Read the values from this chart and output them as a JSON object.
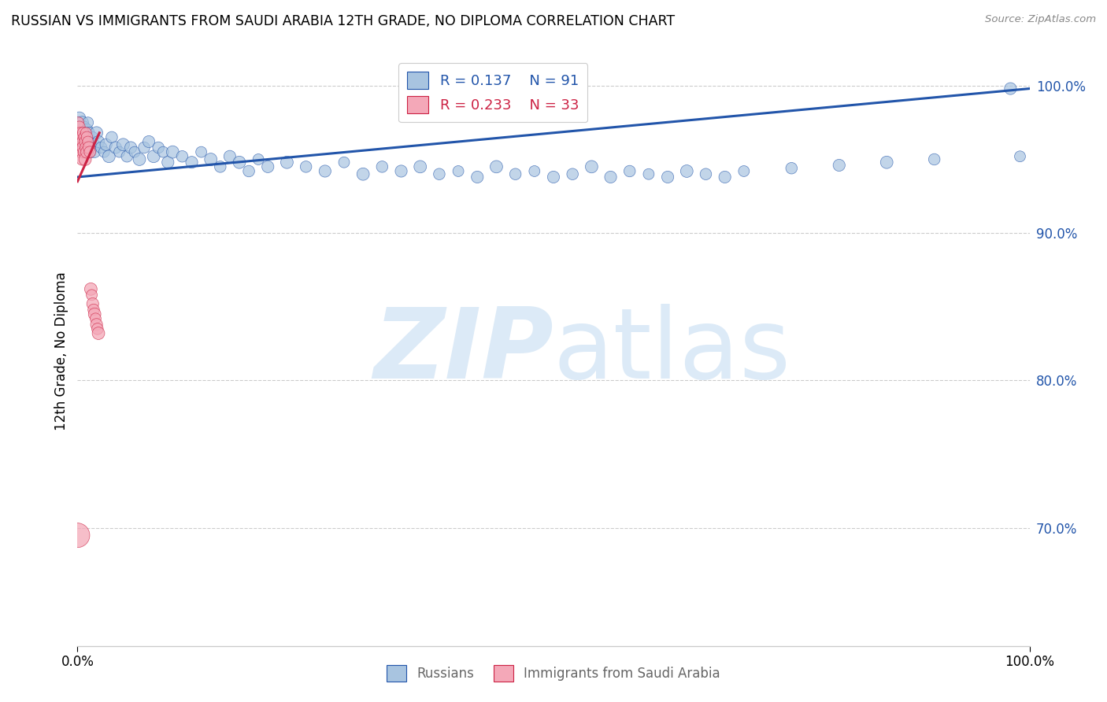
{
  "title": "RUSSIAN VS IMMIGRANTS FROM SAUDI ARABIA 12TH GRADE, NO DIPLOMA CORRELATION CHART",
  "source": "Source: ZipAtlas.com",
  "ylabel": "12th Grade, No Diploma",
  "legend_r1": "R = 0.137",
  "legend_n1": "N = 91",
  "legend_r2": "R = 0.233",
  "legend_n2": "N = 33",
  "blue_color": "#a8c4e0",
  "pink_color": "#f4a8b8",
  "blue_line_color": "#2255aa",
  "pink_line_color": "#cc2244",
  "blue_text_color": "#2255aa",
  "pink_text_color": "#cc2244",
  "right_tick_color": "#2255aa",
  "watermark_color": "#dceaf7",
  "grid_color": "#cccccc",
  "russians_x": [
    0.001,
    0.002,
    0.002,
    0.003,
    0.003,
    0.004,
    0.004,
    0.005,
    0.005,
    0.006,
    0.006,
    0.007,
    0.007,
    0.008,
    0.008,
    0.009,
    0.009,
    0.01,
    0.01,
    0.011,
    0.011,
    0.012,
    0.012,
    0.013,
    0.014,
    0.015,
    0.016,
    0.017,
    0.018,
    0.02,
    0.022,
    0.025,
    0.028,
    0.03,
    0.033,
    0.036,
    0.04,
    0.044,
    0.048,
    0.052,
    0.056,
    0.06,
    0.065,
    0.07,
    0.075,
    0.08,
    0.085,
    0.09,
    0.095,
    0.1,
    0.11,
    0.12,
    0.13,
    0.14,
    0.15,
    0.16,
    0.17,
    0.18,
    0.19,
    0.2,
    0.22,
    0.24,
    0.26,
    0.28,
    0.3,
    0.32,
    0.34,
    0.36,
    0.38,
    0.4,
    0.42,
    0.44,
    0.46,
    0.48,
    0.5,
    0.52,
    0.54,
    0.56,
    0.58,
    0.6,
    0.62,
    0.64,
    0.66,
    0.68,
    0.7,
    0.75,
    0.8,
    0.85,
    0.9,
    0.98,
    0.99
  ],
  "russians_y": [
    0.975,
    0.97,
    0.978,
    0.965,
    0.972,
    0.968,
    0.96,
    0.975,
    0.962,
    0.97,
    0.958,
    0.965,
    0.972,
    0.96,
    0.968,
    0.955,
    0.963,
    0.97,
    0.958,
    0.965,
    0.975,
    0.96,
    0.968,
    0.955,
    0.962,
    0.958,
    0.965,
    0.96,
    0.955,
    0.968,
    0.962,
    0.958,
    0.955,
    0.96,
    0.952,
    0.965,
    0.958,
    0.955,
    0.96,
    0.952,
    0.958,
    0.955,
    0.95,
    0.958,
    0.962,
    0.952,
    0.958,
    0.955,
    0.948,
    0.955,
    0.952,
    0.948,
    0.955,
    0.95,
    0.945,
    0.952,
    0.948,
    0.942,
    0.95,
    0.945,
    0.948,
    0.945,
    0.942,
    0.948,
    0.94,
    0.945,
    0.942,
    0.945,
    0.94,
    0.942,
    0.938,
    0.945,
    0.94,
    0.942,
    0.938,
    0.94,
    0.945,
    0.938,
    0.942,
    0.94,
    0.938,
    0.942,
    0.94,
    0.938,
    0.942,
    0.944,
    0.946,
    0.948,
    0.95,
    0.998,
    0.952
  ],
  "russians_size": [
    120,
    100,
    130,
    110,
    140,
    100,
    120,
    130,
    110,
    120,
    100,
    130,
    110,
    120,
    100,
    130,
    110,
    120,
    130,
    110,
    100,
    120,
    110,
    130,
    120,
    110,
    100,
    120,
    110,
    130,
    120,
    110,
    100,
    120,
    130,
    110,
    120,
    100,
    130,
    110,
    120,
    100,
    130,
    110,
    120,
    130,
    110,
    100,
    120,
    130,
    110,
    120,
    100,
    130,
    110,
    120,
    130,
    110,
    100,
    120,
    130,
    110,
    120,
    100,
    130,
    110,
    120,
    130,
    110,
    100,
    120,
    130,
    110,
    100,
    120,
    110,
    130,
    120,
    110,
    100,
    120,
    130,
    110,
    120,
    100,
    110,
    120,
    130,
    110,
    120,
    100
  ],
  "saudi_x": [
    0.001,
    0.001,
    0.002,
    0.002,
    0.003,
    0.003,
    0.004,
    0.004,
    0.005,
    0.005,
    0.006,
    0.006,
    0.007,
    0.007,
    0.008,
    0.008,
    0.009,
    0.009,
    0.01,
    0.01,
    0.011,
    0.012,
    0.013,
    0.014,
    0.015,
    0.016,
    0.017,
    0.018,
    0.019,
    0.02,
    0.021,
    0.022,
    0.0
  ],
  "saudi_y": [
    0.975,
    0.968,
    0.972,
    0.962,
    0.968,
    0.958,
    0.965,
    0.955,
    0.962,
    0.95,
    0.968,
    0.958,
    0.965,
    0.955,
    0.962,
    0.95,
    0.968,
    0.958,
    0.965,
    0.955,
    0.962,
    0.958,
    0.955,
    0.862,
    0.858,
    0.852,
    0.848,
    0.845,
    0.842,
    0.838,
    0.835,
    0.832,
    0.695
  ],
  "saudi_size": [
    100,
    120,
    110,
    130,
    100,
    120,
    110,
    130,
    100,
    120,
    110,
    130,
    100,
    120,
    110,
    130,
    100,
    120,
    110,
    130,
    100,
    120,
    110,
    130,
    100,
    120,
    110,
    130,
    100,
    120,
    110,
    130,
    500
  ],
  "blue_trend": [
    0.0,
    1.0,
    0.938,
    0.998
  ],
  "pink_trend": [
    0.0,
    0.023,
    0.935,
    0.968
  ],
  "xlim": [
    0.0,
    1.0
  ],
  "ylim": [
    0.62,
    1.02
  ],
  "yticks": [
    0.7,
    0.8,
    0.9,
    1.0
  ],
  "ytick_labels": [
    "70.0%",
    "80.0%",
    "90.0%",
    "100.0%"
  ],
  "xtick_labels": [
    "0.0%",
    "100.0%"
  ]
}
